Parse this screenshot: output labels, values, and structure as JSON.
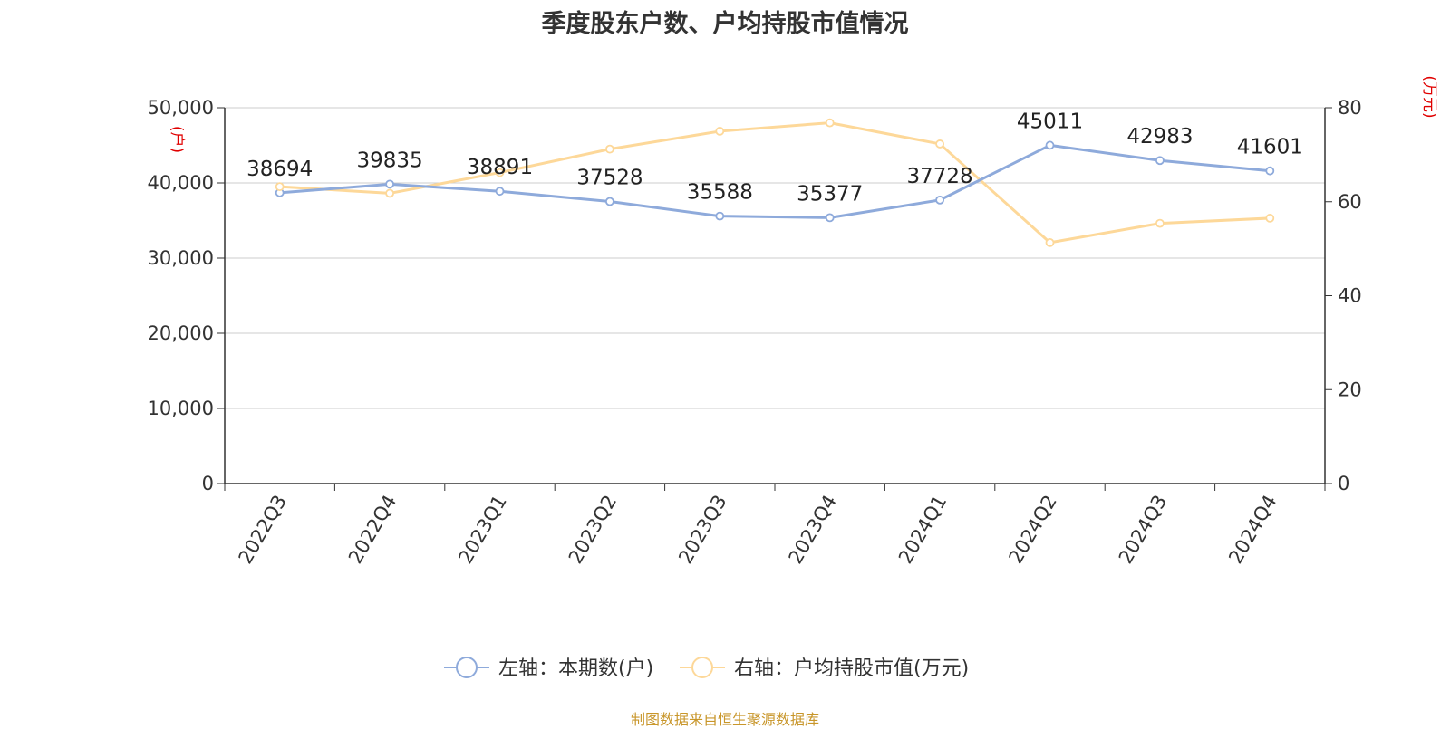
{
  "title": "季度股东户数、户均持股市值情况",
  "source": "制图数据来自恒生聚源数据库",
  "colors": {
    "series_left": "#8eaadb",
    "series_right": "#fdd899",
    "grid": "#cccccc",
    "axis": "#333333",
    "unit": "#e00000"
  },
  "chart_data": {
    "type": "line",
    "categories": [
      "2022Q3",
      "2022Q4",
      "2023Q1",
      "2023Q2",
      "2023Q3",
      "2023Q4",
      "2024Q1",
      "2024Q2",
      "2024Q3",
      "2024Q4"
    ],
    "y_left": {
      "unit": "(户)",
      "ylim": [
        0,
        50000
      ],
      "ticks": [
        "0",
        "10,000",
        "20,000",
        "30,000",
        "40,000",
        "50,000"
      ]
    },
    "y_right": {
      "unit": "(万元)",
      "ylim": [
        0,
        80
      ],
      "ticks": [
        "0",
        "20",
        "40",
        "60",
        "80"
      ]
    },
    "series": [
      {
        "name": "左轴：本期数(户)",
        "axis": "left",
        "values": [
          38694,
          39835,
          38891,
          37528,
          35588,
          35377,
          37728,
          45011,
          42983,
          41601
        ],
        "labels": [
          "38694",
          "39835",
          "38891",
          "37528",
          "35588",
          "35377",
          "37728",
          "45011",
          "42983",
          "41601"
        ]
      },
      {
        "name": "右轴：户均持股市值(万元)",
        "axis": "right",
        "values": [
          63.2,
          61.8,
          66.2,
          71.2,
          75.0,
          76.8,
          72.3,
          51.3,
          55.4,
          56.5
        ]
      }
    ],
    "grid": true,
    "legend": "bottom"
  }
}
